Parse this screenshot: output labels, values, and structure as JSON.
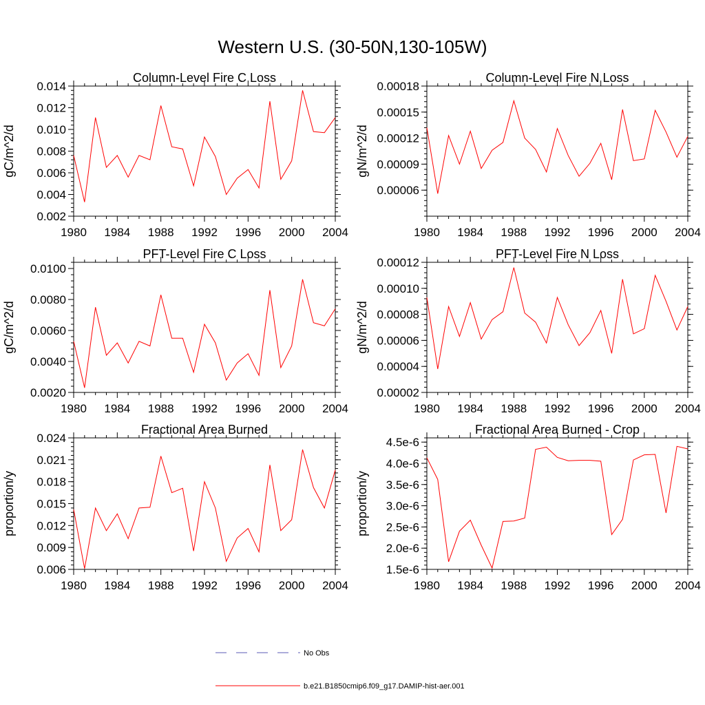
{
  "figure": {
    "title": "Western U.S. (30-50N,130-105W)",
    "series_color": "#ff0000",
    "obs_color": "#5a5ab4",
    "legend": {
      "obs_label": "No Obs",
      "model_label": "b.e21.B1850cmip6.f09_g17.DAMIP-hist-aer.001"
    }
  },
  "chart_data": [
    {
      "type": "line",
      "title": "Column-Level Fire C Loss",
      "ylabel": "gC/m^2/d",
      "xlim": [
        1980,
        2004
      ],
      "ylim": [
        0.002,
        0.014
      ],
      "xticks": [
        "1980",
        "1984",
        "1988",
        "1992",
        "1996",
        "2000",
        "2004"
      ],
      "yticks": [
        "0.002",
        "0.004",
        "0.006",
        "0.008",
        "0.010",
        "0.012",
        "0.014"
      ],
      "x": [
        1980,
        1981,
        1982,
        1983,
        1984,
        1985,
        1986,
        1987,
        1988,
        1989,
        1990,
        1991,
        1992,
        1993,
        1994,
        1995,
        1996,
        1997,
        1998,
        1999,
        2000,
        2001,
        2002,
        2003,
        2004
      ],
      "series": [
        {
          "values": [
            0.0076,
            0.0033,
            0.0111,
            0.0065,
            0.0076,
            0.0056,
            0.0076,
            0.0072,
            0.0122,
            0.0084,
            0.0082,
            0.0048,
            0.0093,
            0.0075,
            0.004,
            0.0055,
            0.0063,
            0.0046,
            0.0126,
            0.0054,
            0.0071,
            0.0136,
            0.0098,
            0.0097,
            0.0111
          ]
        }
      ]
    },
    {
      "type": "line",
      "title": "Column-Level Fire N Loss",
      "ylabel": "gN/m^2/d",
      "xlim": [
        1980,
        2004
      ],
      "ylim": [
        3e-05,
        0.00018
      ],
      "xticks": [
        "1980",
        "1984",
        "1988",
        "1992",
        "1996",
        "2000",
        "2004"
      ],
      "yticks": [
        "0.00006",
        "0.00009",
        "0.00012",
        "0.00015",
        "0.00018"
      ],
      "x": [
        1980,
        1981,
        1982,
        1983,
        1984,
        1985,
        1986,
        1987,
        1988,
        1989,
        1990,
        1991,
        1992,
        1993,
        1994,
        1995,
        1996,
        1997,
        1998,
        1999,
        2000,
        2001,
        2002,
        2003,
        2004
      ],
      "series": [
        {
          "values": [
            0.000132,
            5.6e-05,
            0.000123,
            9e-05,
            0.000128,
            8.5e-05,
            0.000106,
            0.000115,
            0.000163,
            0.00012,
            0.000107,
            8.1e-05,
            0.000131,
            0.0001,
            7.6e-05,
            9.1e-05,
            0.000114,
            7.2e-05,
            0.000153,
            9.4e-05,
            9.6e-05,
            0.000152,
            0.000127,
            9.8e-05,
            0.000122
          ]
        }
      ]
    },
    {
      "type": "line",
      "title": "PFT-Level Fire C Loss",
      "ylabel": "gC/m^2/d",
      "xlim": [
        1980,
        2004
      ],
      "ylim": [
        0.002,
        0.0104
      ],
      "xticks": [
        "1980",
        "1984",
        "1988",
        "1992",
        "1996",
        "2000",
        "2004"
      ],
      "yticks": [
        "0.0020",
        "0.0040",
        "0.0060",
        "0.0080",
        "0.0100"
      ],
      "x": [
        1980,
        1981,
        1982,
        1983,
        1984,
        1985,
        1986,
        1987,
        1988,
        1989,
        1990,
        1991,
        1992,
        1993,
        1994,
        1995,
        1996,
        1997,
        1998,
        1999,
        2000,
        2001,
        2002,
        2003,
        2004
      ],
      "series": [
        {
          "values": [
            0.0053,
            0.0023,
            0.0075,
            0.0044,
            0.0052,
            0.0039,
            0.0053,
            0.005,
            0.0083,
            0.0055,
            0.0055,
            0.0033,
            0.0064,
            0.0052,
            0.0028,
            0.0039,
            0.0045,
            0.0031,
            0.0086,
            0.0036,
            0.005,
            0.0093,
            0.0065,
            0.0063,
            0.0074
          ]
        }
      ]
    },
    {
      "type": "line",
      "title": "PFT-Level Fire N Loss",
      "ylabel": "gN/m^2/d",
      "xlim": [
        1980,
        2004
      ],
      "ylim": [
        2e-05,
        0.00012
      ],
      "xticks": [
        "1980",
        "1984",
        "1988",
        "1992",
        "1996",
        "2000",
        "2004"
      ],
      "yticks": [
        "0.00002",
        "0.00004",
        "0.00006",
        "0.00008",
        "0.00010",
        "0.00012"
      ],
      "x": [
        1980,
        1981,
        1982,
        1983,
        1984,
        1985,
        1986,
        1987,
        1988,
        1989,
        1990,
        1991,
        1992,
        1993,
        1994,
        1995,
        1996,
        1997,
        1998,
        1999,
        2000,
        2001,
        2002,
        2003,
        2004
      ],
      "series": [
        {
          "values": [
            9.3e-05,
            3.8e-05,
            8.6e-05,
            6.3e-05,
            8.9e-05,
            6.1e-05,
            7.6e-05,
            8.2e-05,
            0.000116,
            8.1e-05,
            7.4e-05,
            5.8e-05,
            9.3e-05,
            7.2e-05,
            5.6e-05,
            6.6e-05,
            8.3e-05,
            5e-05,
            0.000107,
            6.5e-05,
            6.9e-05,
            0.00011,
            9e-05,
            6.8e-05,
            8.6e-05
          ]
        }
      ]
    },
    {
      "type": "line",
      "title": "Fractional Area Burned",
      "ylabel": "proportion/y",
      "xlim": [
        1980,
        2004
      ],
      "ylim": [
        0.006,
        0.024
      ],
      "xticks": [
        "1980",
        "1984",
        "1988",
        "1992",
        "1996",
        "2000",
        "2004"
      ],
      "yticks": [
        "0.006",
        "0.009",
        "0.012",
        "0.015",
        "0.018",
        "0.021",
        "0.024"
      ],
      "x": [
        1980,
        1981,
        1982,
        1983,
        1984,
        1985,
        1986,
        1987,
        1988,
        1989,
        1990,
        1991,
        1992,
        1993,
        1994,
        1995,
        1996,
        1997,
        1998,
        1999,
        2000,
        2001,
        2002,
        2003,
        2004
      ],
      "series": [
        {
          "values": [
            0.0142,
            0.0061,
            0.0144,
            0.0113,
            0.0136,
            0.0102,
            0.0144,
            0.0145,
            0.0215,
            0.0165,
            0.0171,
            0.0085,
            0.018,
            0.0144,
            0.0071,
            0.0103,
            0.0116,
            0.0084,
            0.0203,
            0.0113,
            0.0128,
            0.0224,
            0.0172,
            0.0144,
            0.0196
          ]
        }
      ]
    },
    {
      "type": "line",
      "title": "Fractional Area Burned - Crop",
      "ylabel": "proportion/y",
      "xlim": [
        1980,
        2004
      ],
      "ylim": [
        1.5e-06,
        4.6e-06
      ],
      "xticks": [
        "1980",
        "1984",
        "1988",
        "1992",
        "1996",
        "2000",
        "2004"
      ],
      "yticks": [
        "1.5e-6",
        "2.0e-6",
        "2.5e-6",
        "3.0e-6",
        "3.5e-6",
        "4.0e-6",
        "4.5e-6"
      ],
      "x": [
        1980,
        1981,
        1982,
        1983,
        1984,
        1985,
        1986,
        1987,
        1988,
        1989,
        1990,
        1991,
        1992,
        1993,
        1994,
        1995,
        1996,
        1997,
        1998,
        1999,
        2000,
        2001,
        2002,
        2003,
        2004
      ],
      "series": [
        {
          "values": [
            4.13e-06,
            3.62e-06,
            1.68e-06,
            2.4e-06,
            2.66e-06,
            2.07e-06,
            1.53e-06,
            2.63e-06,
            2.64e-06,
            2.71e-06,
            4.33e-06,
            4.38e-06,
            4.14e-06,
            4.06e-06,
            4.07e-06,
            4.07e-06,
            4.05e-06,
            2.32e-06,
            2.68e-06,
            4.08e-06,
            4.2e-06,
            4.21e-06,
            2.83e-06,
            4.4e-06,
            4.34e-06
          ]
        }
      ]
    }
  ]
}
